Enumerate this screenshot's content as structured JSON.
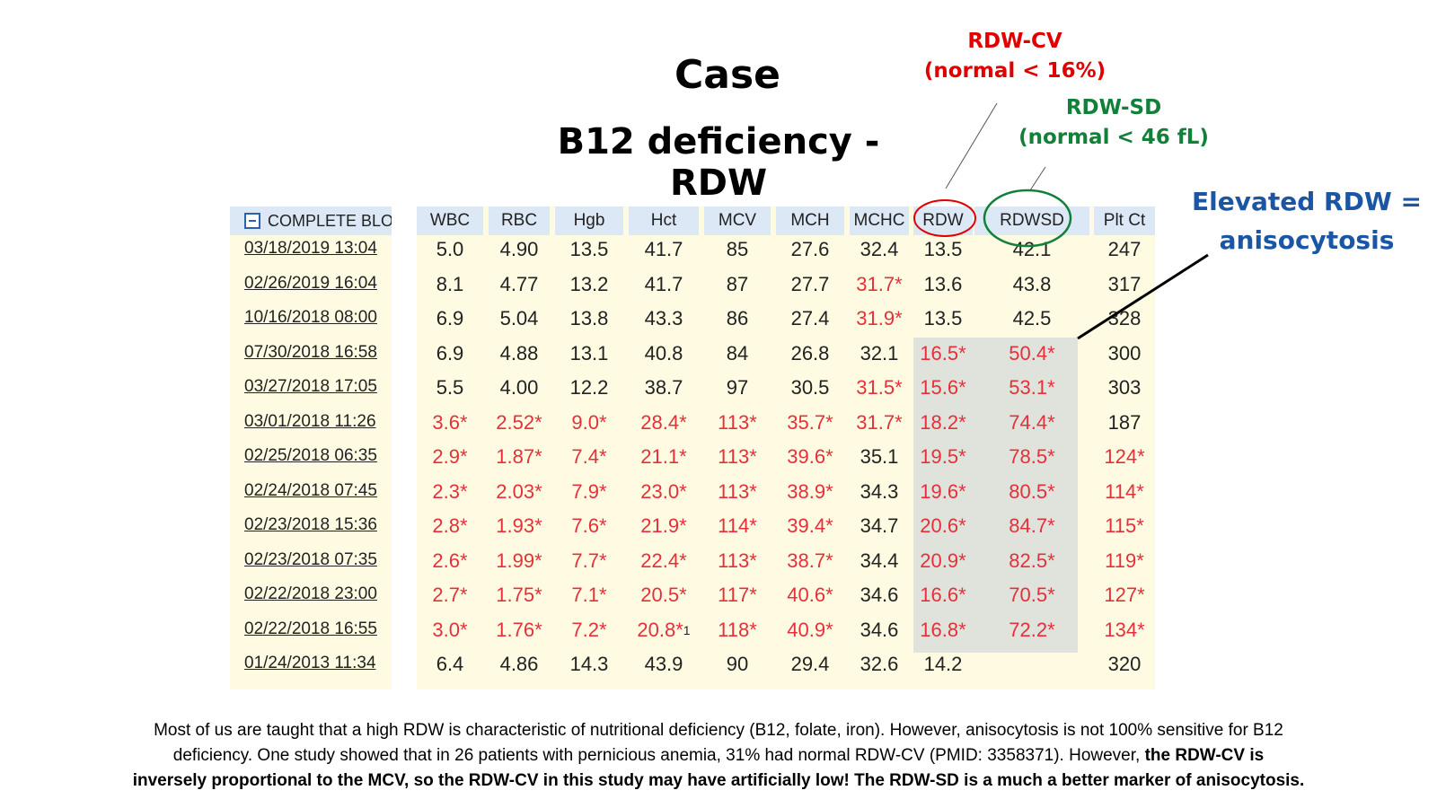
{
  "header": {
    "title": "Case",
    "subtitle": "B12 deficiency - RDW"
  },
  "annotations": {
    "rdw_cv_label": "RDW-CV",
    "rdw_cv_normal": "(normal < 16%)",
    "rdw_sd_label": "RDW-SD",
    "rdw_sd_normal": "(normal < 46 fL)",
    "elevated_line1": "Elevated RDW =",
    "elevated_line2": "anisocytosis"
  },
  "panel": {
    "section_label": "COMPLETE BLOOD COUNT",
    "dates": [
      "03/18/2019 13:04",
      "02/26/2019 16:04",
      "10/16/2018 08:00",
      "07/30/2018 16:58",
      "03/27/2018 17:05",
      "03/01/2018 11:26",
      "02/25/2018 06:35",
      "02/24/2018 07:45",
      "02/23/2018 15:36",
      "02/23/2018 07:35",
      "02/22/2018 23:00",
      "02/22/2018 16:55",
      "01/24/2013 11:34"
    ]
  },
  "table": {
    "columns": [
      "WBC",
      "RBC",
      "Hgb",
      "Hct",
      "MCV",
      "MCH",
      "MCHC",
      "RDW",
      "RDWSD",
      "Plt Ct"
    ],
    "rows": [
      [
        "5.0",
        "4.90",
        "13.5",
        "41.7",
        "85",
        "27.6",
        "32.4",
        "13.5",
        "42.1",
        "247"
      ],
      [
        "8.1",
        "4.77",
        "13.2",
        "41.7",
        "87",
        "27.7",
        "31.7*",
        "13.6",
        "43.8",
        "317"
      ],
      [
        "6.9",
        "5.04",
        "13.8",
        "43.3",
        "86",
        "27.4",
        "31.9*",
        "13.5",
        "42.5",
        "328"
      ],
      [
        "6.9",
        "4.88",
        "13.1",
        "40.8",
        "84",
        "26.8",
        "32.1",
        "16.5*",
        "50.4*",
        "300"
      ],
      [
        "5.5",
        "4.00",
        "12.2",
        "38.7",
        "97",
        "30.5",
        "31.5*",
        "15.6*",
        "53.1*",
        "303"
      ],
      [
        "3.6*",
        "2.52*",
        "9.0*",
        "28.4*",
        "113*",
        "35.7*",
        "31.7*",
        "18.2*",
        "74.4*",
        "187"
      ],
      [
        "2.9*",
        "1.87*",
        "7.4*",
        "21.1*",
        "113*",
        "39.6*",
        "35.1",
        "19.5*",
        "78.5*",
        "124*"
      ],
      [
        "2.3*",
        "2.03*",
        "7.9*",
        "23.0*",
        "113*",
        "38.9*",
        "34.3",
        "19.6*",
        "80.5*",
        "114*"
      ],
      [
        "2.8*",
        "1.93*",
        "7.6*",
        "21.9*",
        "114*",
        "39.4*",
        "34.7",
        "20.6*",
        "84.7*",
        "115*"
      ],
      [
        "2.6*",
        "1.99*",
        "7.7*",
        "22.4*",
        "113*",
        "38.7*",
        "34.4",
        "20.9*",
        "82.5*",
        "119*"
      ],
      [
        "2.7*",
        "1.75*",
        "7.1*",
        "20.5*",
        "117*",
        "40.6*",
        "34.6",
        "16.6*",
        "70.5*",
        "127*"
      ],
      [
        "3.0*",
        "1.76*",
        "7.2*",
        "20.8*",
        "118*",
        "40.9*",
        "34.6",
        "16.8*",
        "72.2*",
        "134*"
      ],
      [
        "6.4",
        "4.86",
        "14.3",
        "43.9",
        "90",
        "29.4",
        "32.6",
        "14.2",
        "",
        "320"
      ]
    ],
    "footnote_mark": "1"
  },
  "footer": {
    "line1": "Most of us are taught that a high RDW is characteristic of nutritional deficiency (B12, folate, iron). However,  anisocytosis is not 100% sensitive for B12",
    "line2_plain": "deficiency. One study showed that in 26 patients with pernicious anemia, 31% had normal RDW-CV (PMID: 3358371). However, ",
    "line2_bold": "the RDW-CV is",
    "line3_bold": "inversely proportional to the MCV, so the RDW-CV in this study may have artificially low! The RDW-SD is a much a better marker of anisocytosis."
  },
  "colors": {
    "abnormal": "#e5303a",
    "rdw_cv": "#e00000",
    "rdw_sd": "#13803a",
    "elevated": "#1b56a5"
  }
}
